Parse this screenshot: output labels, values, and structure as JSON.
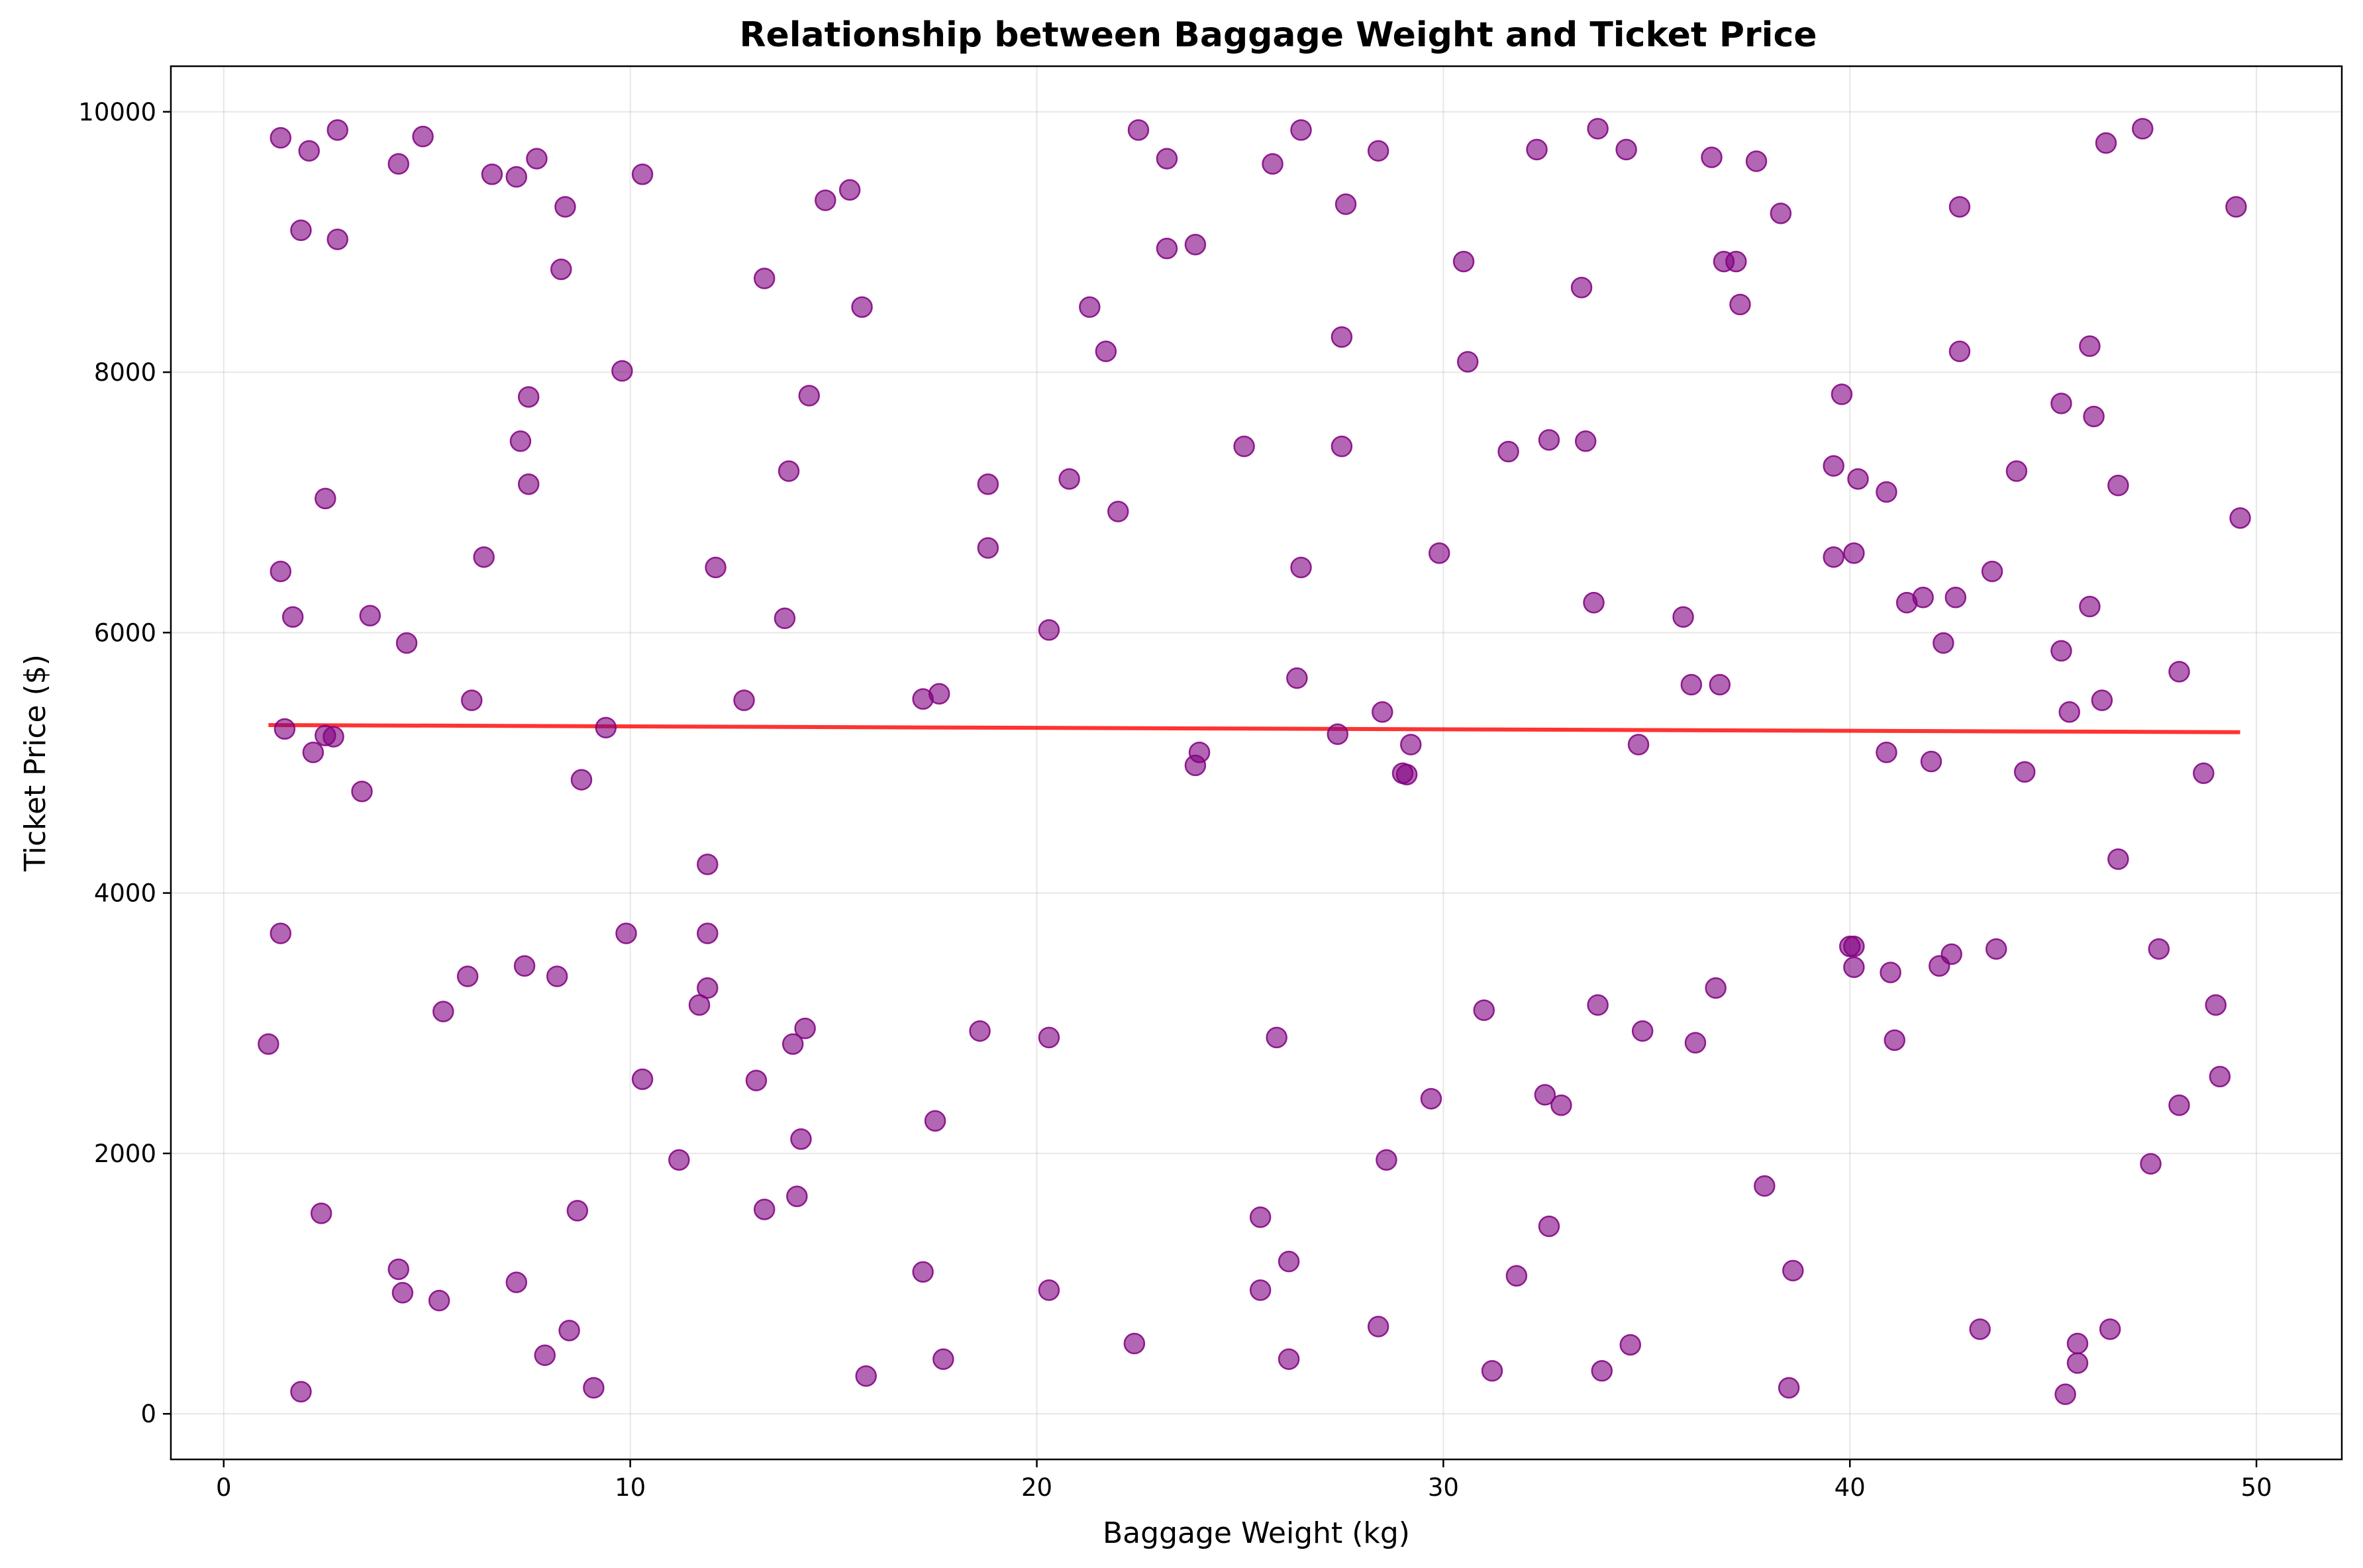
{
  "chart_data": {
    "type": "scatter",
    "title": "Relationship between Baggage Weight and Ticket Price",
    "xlabel": "Baggage Weight (kg)",
    "ylabel": "Ticket Price ($)",
    "xlim": [
      -1.3,
      52.1
    ],
    "ylim": [
      -350,
      10350
    ],
    "xticks": [
      0,
      10,
      20,
      30,
      40,
      50
    ],
    "yticks": [
      0,
      2000,
      4000,
      6000,
      8000,
      10000
    ],
    "grid": true,
    "legend": "none",
    "point_color": "#800080",
    "trend_color": "#ff0000",
    "trendline": {
      "x": [
        1.1,
        49.6
      ],
      "y": [
        5290,
        5235
      ]
    },
    "points": [
      [
        1.1,
        2840
      ],
      [
        1.4,
        9800
      ],
      [
        1.4,
        6470
      ],
      [
        1.5,
        5260
      ],
      [
        1.4,
        3690
      ],
      [
        1.7,
        6120
      ],
      [
        1.9,
        9090
      ],
      [
        2.1,
        9700
      ],
      [
        2.2,
        5080
      ],
      [
        2.4,
        1540
      ],
      [
        2.5,
        7030
      ],
      [
        2.5,
        5210
      ],
      [
        2.7,
        5200
      ],
      [
        2.8,
        9860
      ],
      [
        2.8,
        9020
      ],
      [
        1.9,
        170
      ],
      [
        3.6,
        6130
      ],
      [
        3.4,
        4780
      ],
      [
        4.3,
        9600
      ],
      [
        4.3,
        1110
      ],
      [
        4.5,
        5920
      ],
      [
        4.4,
        930
      ],
      [
        4.9,
        9810
      ],
      [
        5.3,
        870
      ],
      [
        5.4,
        3090
      ],
      [
        6.0,
        3360
      ],
      [
        6.1,
        5480
      ],
      [
        6.4,
        6580
      ],
      [
        6.6,
        9520
      ],
      [
        7.2,
        9500
      ],
      [
        7.2,
        1010
      ],
      [
        7.3,
        7470
      ],
      [
        7.4,
        3440
      ],
      [
        7.5,
        7140
      ],
      [
        7.5,
        7810
      ],
      [
        7.7,
        9640
      ],
      [
        7.9,
        450
      ],
      [
        8.2,
        3360
      ],
      [
        8.3,
        8790
      ],
      [
        8.4,
        9270
      ],
      [
        8.5,
        640
      ],
      [
        8.7,
        1560
      ],
      [
        8.8,
        4870
      ],
      [
        9.1,
        200
      ],
      [
        9.4,
        5270
      ],
      [
        9.8,
        8010
      ],
      [
        9.9,
        3690
      ],
      [
        10.3,
        9520
      ],
      [
        10.3,
        2570
      ],
      [
        11.2,
        1950
      ],
      [
        11.7,
        3140
      ],
      [
        11.9,
        4220
      ],
      [
        11.9,
        3690
      ],
      [
        11.9,
        3270
      ],
      [
        12.1,
        6500
      ],
      [
        12.8,
        5480
      ],
      [
        13.1,
        2560
      ],
      [
        13.3,
        8720
      ],
      [
        13.3,
        1570
      ],
      [
        13.8,
        6110
      ],
      [
        13.9,
        7240
      ],
      [
        14.0,
        2840
      ],
      [
        14.1,
        1670
      ],
      [
        14.2,
        2110
      ],
      [
        14.3,
        2960
      ],
      [
        14.4,
        7820
      ],
      [
        14.8,
        9320
      ],
      [
        15.4,
        9400
      ],
      [
        15.7,
        8500
      ],
      [
        15.8,
        290
      ],
      [
        17.2,
        5490
      ],
      [
        17.2,
        1090
      ],
      [
        17.5,
        2250
      ],
      [
        17.6,
        5530
      ],
      [
        17.7,
        420
      ],
      [
        18.6,
        2940
      ],
      [
        18.8,
        7140
      ],
      [
        18.8,
        6650
      ],
      [
        20.3,
        6020
      ],
      [
        20.3,
        2890
      ],
      [
        20.3,
        950
      ],
      [
        20.8,
        7180
      ],
      [
        21.3,
        8500
      ],
      [
        21.7,
        8160
      ],
      [
        22.0,
        6930
      ],
      [
        22.4,
        540
      ],
      [
        22.5,
        9860
      ],
      [
        23.2,
        9640
      ],
      [
        23.2,
        8950
      ],
      [
        23.9,
        8980
      ],
      [
        23.9,
        4980
      ],
      [
        24.0,
        5080
      ],
      [
        25.1,
        7430
      ],
      [
        25.5,
        1510
      ],
      [
        25.5,
        950
      ],
      [
        25.8,
        9600
      ],
      [
        25.9,
        2890
      ],
      [
        26.2,
        1170
      ],
      [
        26.2,
        420
      ],
      [
        26.4,
        5650
      ],
      [
        26.5,
        6500
      ],
      [
        26.5,
        9860
      ],
      [
        27.4,
        5220
      ],
      [
        27.5,
        8270
      ],
      [
        27.5,
        7430
      ],
      [
        27.6,
        9290
      ],
      [
        28.4,
        9700
      ],
      [
        28.4,
        670
      ],
      [
        28.5,
        5390
      ],
      [
        28.6,
        1950
      ],
      [
        29.0,
        4920
      ],
      [
        29.1,
        4910
      ],
      [
        29.2,
        5140
      ],
      [
        29.7,
        2420
      ],
      [
        29.9,
        6610
      ],
      [
        30.5,
        8850
      ],
      [
        30.6,
        8080
      ],
      [
        31.0,
        3100
      ],
      [
        31.2,
        330
      ],
      [
        31.6,
        7390
      ],
      [
        31.8,
        1060
      ],
      [
        32.3,
        9710
      ],
      [
        32.5,
        2450
      ],
      [
        32.6,
        7480
      ],
      [
        32.6,
        1440
      ],
      [
        32.9,
        2370
      ],
      [
        33.4,
        8650
      ],
      [
        33.5,
        7470
      ],
      [
        33.7,
        6230
      ],
      [
        33.8,
        3140
      ],
      [
        33.8,
        9870
      ],
      [
        33.9,
        330
      ],
      [
        34.5,
        9710
      ],
      [
        34.6,
        530
      ],
      [
        34.8,
        5140
      ],
      [
        34.9,
        2940
      ],
      [
        35.9,
        6120
      ],
      [
        36.1,
        5600
      ],
      [
        36.2,
        2850
      ],
      [
        36.6,
        9650
      ],
      [
        36.7,
        3270
      ],
      [
        36.8,
        5600
      ],
      [
        36.9,
        8850
      ],
      [
        37.2,
        8850
      ],
      [
        37.3,
        8520
      ],
      [
        37.7,
        9620
      ],
      [
        37.9,
        1750
      ],
      [
        38.3,
        9220
      ],
      [
        38.5,
        200
      ],
      [
        38.6,
        1100
      ],
      [
        39.6,
        7280
      ],
      [
        39.6,
        6580
      ],
      [
        39.8,
        7830
      ],
      [
        40.0,
        3590
      ],
      [
        40.1,
        3430
      ],
      [
        40.1,
        3590
      ],
      [
        40.1,
        6610
      ],
      [
        40.2,
        7180
      ],
      [
        40.9,
        7080
      ],
      [
        40.9,
        5080
      ],
      [
        41.0,
        3390
      ],
      [
        41.1,
        2870
      ],
      [
        41.4,
        6230
      ],
      [
        41.8,
        6270
      ],
      [
        42.0,
        5010
      ],
      [
        42.2,
        3440
      ],
      [
        42.3,
        5920
      ],
      [
        42.5,
        3530
      ],
      [
        42.6,
        6270
      ],
      [
        42.7,
        8160
      ],
      [
        42.7,
        9270
      ],
      [
        43.2,
        650
      ],
      [
        43.5,
        6470
      ],
      [
        43.6,
        3570
      ],
      [
        44.1,
        7240
      ],
      [
        44.3,
        4930
      ],
      [
        45.2,
        7760
      ],
      [
        45.2,
        5860
      ],
      [
        45.3,
        150
      ],
      [
        45.4,
        5390
      ],
      [
        45.6,
        390
      ],
      [
        45.6,
        540
      ],
      [
        45.9,
        8200
      ],
      [
        45.9,
        6200
      ],
      [
        46.0,
        7660
      ],
      [
        46.2,
        5480
      ],
      [
        46.3,
        9760
      ],
      [
        46.4,
        650
      ],
      [
        46.6,
        4260
      ],
      [
        46.6,
        7130
      ],
      [
        47.2,
        9870
      ],
      [
        47.4,
        1920
      ],
      [
        47.6,
        3570
      ],
      [
        48.1,
        5700
      ],
      [
        48.1,
        2370
      ],
      [
        48.7,
        4920
      ],
      [
        49.0,
        3140
      ],
      [
        49.1,
        2590
      ],
      [
        49.5,
        9270
      ],
      [
        49.6,
        6880
      ]
    ]
  }
}
